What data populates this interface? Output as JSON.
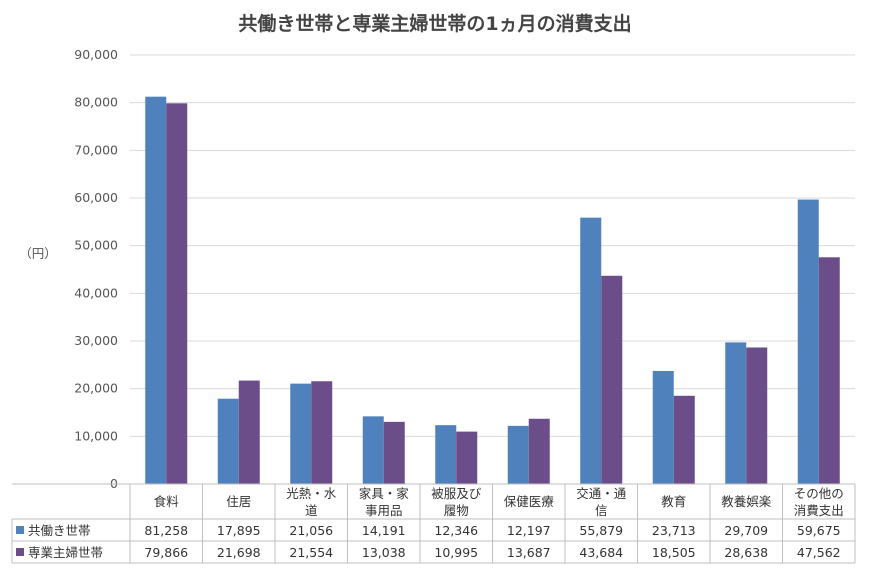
{
  "chart_data": {
    "type": "bar",
    "title": "共働き世帯と専業主婦世帯の1ヵ月の消費支出",
    "ylabel": "（円）",
    "ylim": [
      0,
      90000
    ],
    "yticks": [
      "0",
      "10,000",
      "20,000",
      "30,000",
      "40,000",
      "50,000",
      "60,000",
      "70,000",
      "80,000",
      "90,000"
    ],
    "grid": true,
    "legend": "data-table",
    "categories": [
      [
        "食料"
      ],
      [
        "住居"
      ],
      [
        "光熱・水",
        "道"
      ],
      [
        "家具・家",
        "事用品"
      ],
      [
        "被服及び",
        "履物"
      ],
      [
        "保健医療"
      ],
      [
        "交通・通",
        "信"
      ],
      [
        "教育"
      ],
      [
        "教養娯楽"
      ],
      [
        "その他の",
        "消費支出"
      ]
    ],
    "series": [
      {
        "name": "共働き世帯",
        "color": "#4f81bd",
        "values": [
          81258,
          17895,
          21056,
          14191,
          12346,
          12197,
          55879,
          23713,
          29709,
          59675
        ],
        "labels": [
          "81,258",
          "17,895",
          "21,056",
          "14,191",
          "12,346",
          "12,197",
          "55,879",
          "23,713",
          "29,709",
          "59,675"
        ]
      },
      {
        "name": "専業主婦世帯",
        "color": "#6b4d8a",
        "values": [
          79866,
          21698,
          21554,
          13038,
          10995,
          13687,
          43684,
          18505,
          28638,
          47562
        ],
        "labels": [
          "79,866",
          "21,698",
          "21,554",
          "13,038",
          "10,995",
          "13,687",
          "43,684",
          "18,505",
          "28,638",
          "47,562"
        ]
      }
    ]
  }
}
